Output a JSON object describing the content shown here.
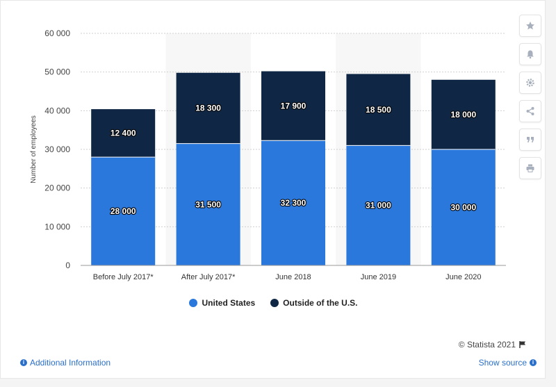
{
  "chart_data": {
    "type": "bar",
    "stacked": true,
    "categories": [
      "Before July 2017*",
      "After July 2017*",
      "June 2018",
      "June 2019",
      "June 2020"
    ],
    "series": [
      {
        "name": "United States",
        "values": [
          28000,
          31500,
          32300,
          31000,
          30000
        ],
        "color": "#2b78dd"
      },
      {
        "name": "Outside of the U.S.",
        "values": [
          12400,
          18300,
          17900,
          18500,
          18000
        ],
        "color": "#0f2744"
      }
    ],
    "value_labels": {
      "United States": [
        "28 000",
        "31 500",
        "32 300",
        "31 000",
        "30 000"
      ],
      "Outside of the U.S.": [
        "12 400",
        "18 300",
        "17 900",
        "18 500",
        "18 000"
      ]
    },
    "ylabel": "Number of employees",
    "xlabel": "",
    "ylim": [
      0,
      60000
    ],
    "yticks": [
      0,
      10000,
      20000,
      30000,
      40000,
      50000,
      60000
    ],
    "ytick_labels": [
      "0",
      "10 000",
      "20 000",
      "30 000",
      "40 000",
      "50 000",
      "60 000"
    ],
    "grid": true,
    "legend_position": "bottom"
  },
  "legend": {
    "us_label": "United States",
    "outside_label": "Outside of the U.S."
  },
  "footer": {
    "credit": "© Statista 2021",
    "additional_info": "Additional Information",
    "show_source": "Show source"
  },
  "sidebar_icons": [
    "star-icon",
    "bell-icon",
    "gear-icon",
    "share-icon",
    "quote-icon",
    "print-icon"
  ],
  "colors": {
    "us": "#2b78dd",
    "outside": "#0f2744",
    "link": "#2a6fc9"
  }
}
